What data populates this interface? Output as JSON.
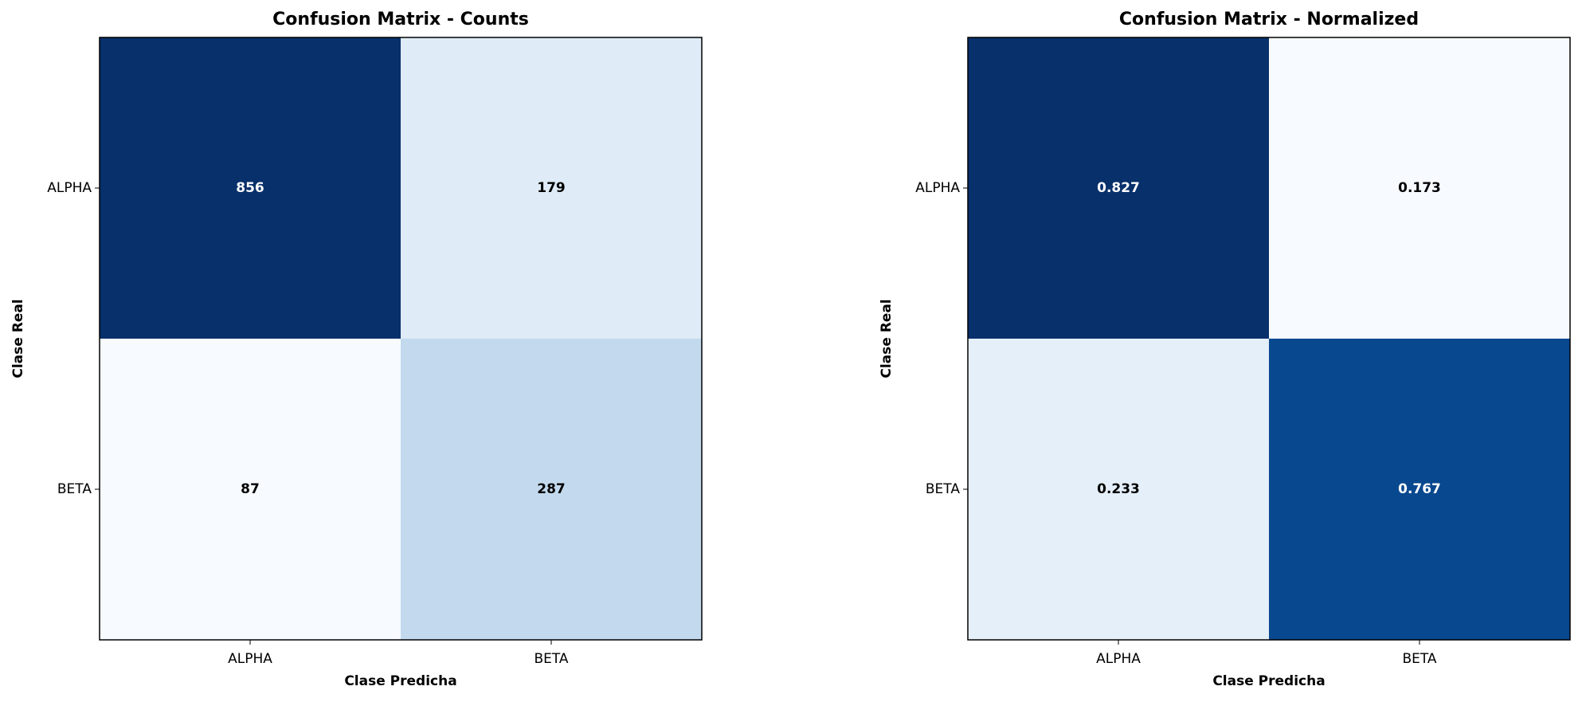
{
  "chart_data": [
    {
      "type": "heatmap",
      "title": "Confusion Matrix - Counts",
      "x_label": "Clase Predicha",
      "y_label": "Clase Real",
      "x_categories": [
        "ALPHA",
        "BETA"
      ],
      "y_categories": [
        "ALPHA",
        "BETA"
      ],
      "values": [
        [
          856,
          179
        ],
        [
          87,
          287
        ]
      ],
      "colormap": [
        "#f7fbff",
        "#deebf7",
        "#c6dbef",
        "#9ecae1",
        "#6baed6",
        "#4292c6",
        "#2171b5",
        "#08519c",
        "#08306b"
      ]
    },
    {
      "type": "heatmap",
      "title": "Confusion Matrix - Normalized",
      "x_label": "Clase Predicha",
      "y_label": "Clase Real",
      "x_categories": [
        "ALPHA",
        "BETA"
      ],
      "y_categories": [
        "ALPHA",
        "BETA"
      ],
      "values": [
        [
          0.827,
          0.173
        ],
        [
          0.233,
          0.767
        ]
      ],
      "colormap": [
        "#f7fbff",
        "#deebf7",
        "#c6dbef",
        "#9ecae1",
        "#6baed6",
        "#4292c6",
        "#2171b5",
        "#08519c",
        "#08306b"
      ]
    }
  ]
}
